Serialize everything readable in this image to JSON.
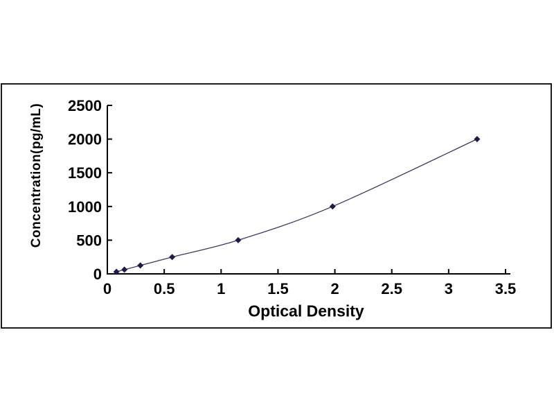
{
  "page": {
    "background": "#ffffff",
    "frame_color": "#1a1a1a"
  },
  "chart_data": {
    "type": "scatter",
    "title": "",
    "xlabel": "Optical Density",
    "ylabel": "Concentration(pg/mL)",
    "x": [
      0.08,
      0.15,
      0.29,
      0.57,
      1.15,
      1.98,
      3.25
    ],
    "y": [
      31.25,
      62.5,
      125,
      250,
      500,
      1000,
      2000
    ],
    "xlim": [
      0,
      3.5
    ],
    "ylim": [
      0,
      2500
    ],
    "x_ticks": [
      0,
      0.5,
      1,
      1.5,
      2,
      2.5,
      3,
      3.5
    ],
    "x_tick_labels": [
      "0",
      "0.5",
      "1",
      "1.5",
      "2",
      "2.5",
      "3",
      "3.5"
    ],
    "y_ticks": [
      0,
      500,
      1000,
      1500,
      2000,
      2500
    ],
    "y_tick_labels": [
      "0",
      "500",
      "1000",
      "1500",
      "2000",
      "2500"
    ],
    "grid": false,
    "legend": "none",
    "tick_style": "inside",
    "axis_color": "#000000",
    "line": {
      "smooth": true,
      "color": "#3b3b63",
      "width": 1.3
    },
    "marker": {
      "shape": "diamond",
      "color": "#1e1b4b",
      "size": 9
    }
  }
}
